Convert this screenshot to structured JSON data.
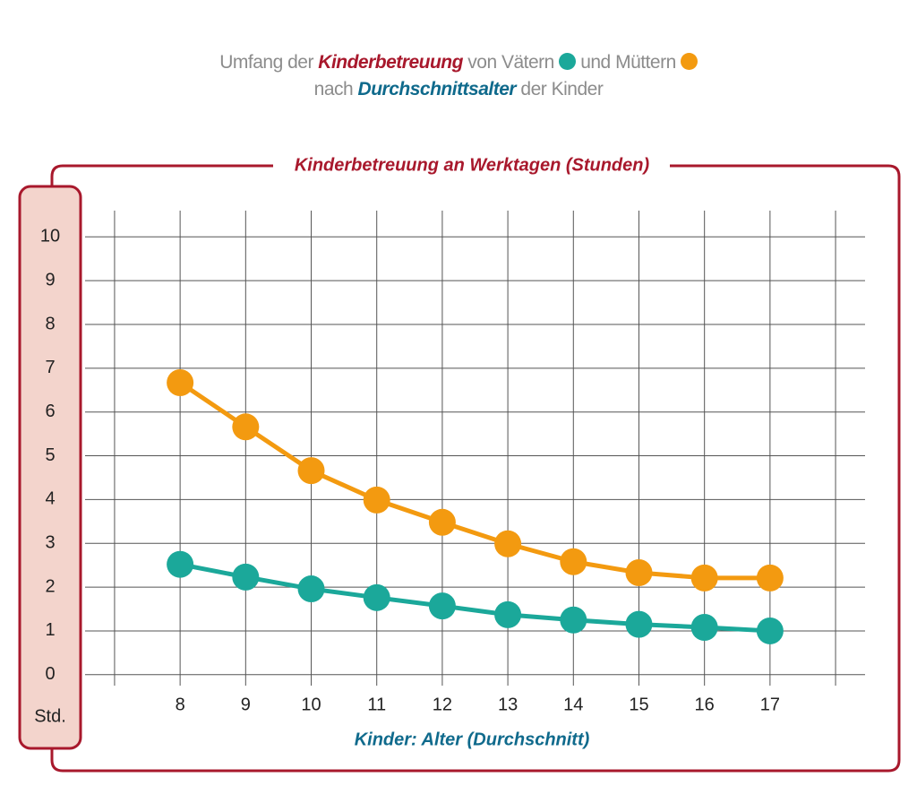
{
  "chart_data": {
    "type": "line",
    "title_parts": [
      "Umfang der ",
      "Kinderbetreuung",
      " von ",
      " und "
    ],
    "subtitle_parts": [
      "nach ",
      "Durchschnittsalter",
      " der Kinder"
    ],
    "panel_title": "Kinderbetreuung an Werktagen (Stunden)",
    "y_label": "Std.",
    "x_label": "Kinder: Alter (Durchschnitt)",
    "x": [
      8,
      9,
      10,
      11,
      12,
      13,
      14,
      15,
      16,
      17
    ],
    "series": [
      {
        "name": "Vätern",
        "color": "#1ba89a",
        "values": [
          2.52,
          2.23,
          1.96,
          1.76,
          1.57,
          1.37,
          1.25,
          1.15,
          1.08,
          1.0
        ]
      },
      {
        "name": "Müttern",
        "color": "#f39a10",
        "values": [
          6.67,
          5.66,
          4.66,
          3.99,
          3.48,
          2.99,
          2.58,
          2.33,
          2.21,
          2.21
        ]
      }
    ],
    "xlim": [
      6.55,
      18.45
    ],
    "xticks": [
      8,
      9,
      10,
      11,
      12,
      13,
      14,
      15,
      16,
      17
    ],
    "ylim": [
      -0.25,
      10.6
    ],
    "yticks": [
      0,
      1,
      2,
      3,
      4,
      5,
      6,
      7,
      8,
      9,
      10
    ],
    "grid": true
  }
}
